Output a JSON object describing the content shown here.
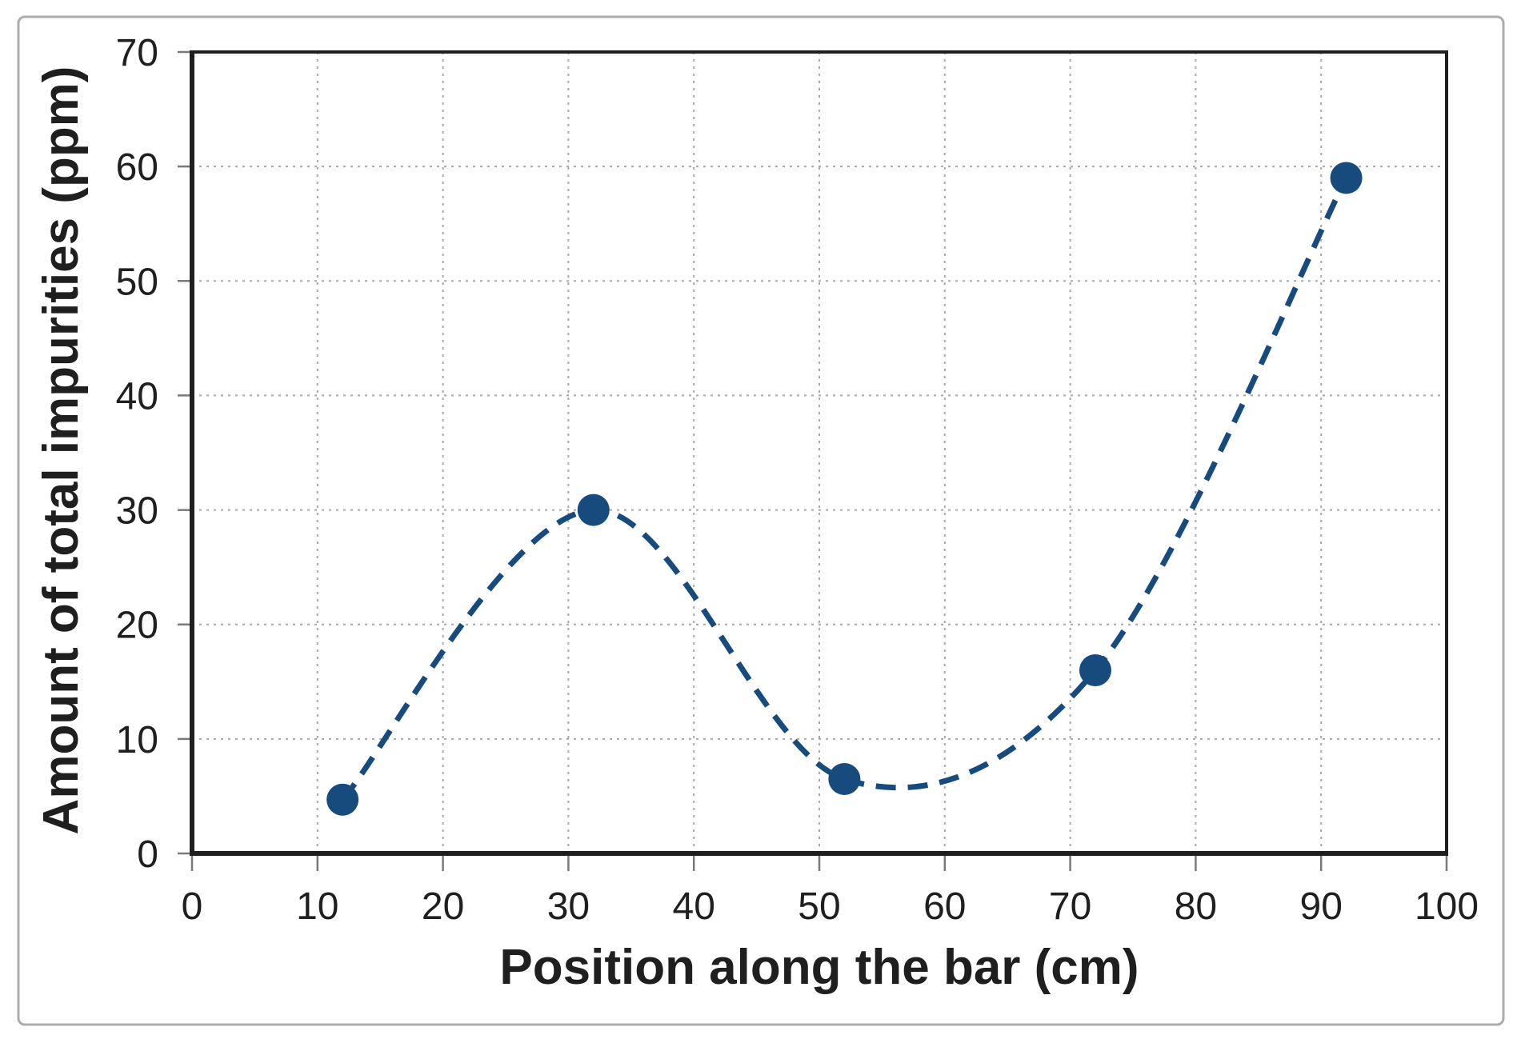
{
  "figure": {
    "background": "#ffffff",
    "frame_color": "#acacac"
  },
  "chart_data": {
    "type": "scatter",
    "xlabel": "Position along the bar (cm)",
    "ylabel": "Amount of total impurities (ppm)",
    "x": [
      12,
      32,
      52,
      72,
      92
    ],
    "y": [
      4.7,
      30,
      6.5,
      16,
      59
    ],
    "xlim": [
      0,
      100
    ],
    "ylim": [
      0,
      70
    ],
    "x_ticks": [
      0,
      10,
      20,
      30,
      40,
      50,
      60,
      70,
      80,
      90,
      100
    ],
    "y_ticks": [
      0,
      10,
      20,
      30,
      40,
      50,
      60,
      70
    ],
    "grid": true,
    "grid_style": "dotted",
    "legend_position": "none",
    "line_style": "dashed",
    "line_smooth": true,
    "marker_shape": "circle",
    "series_color": "#174B7E",
    "grid_color": "#A8A8A8",
    "axis_color": "#1F1F1F",
    "tick_color": "#7A7A7A",
    "text_color": "#1F1F1F"
  }
}
